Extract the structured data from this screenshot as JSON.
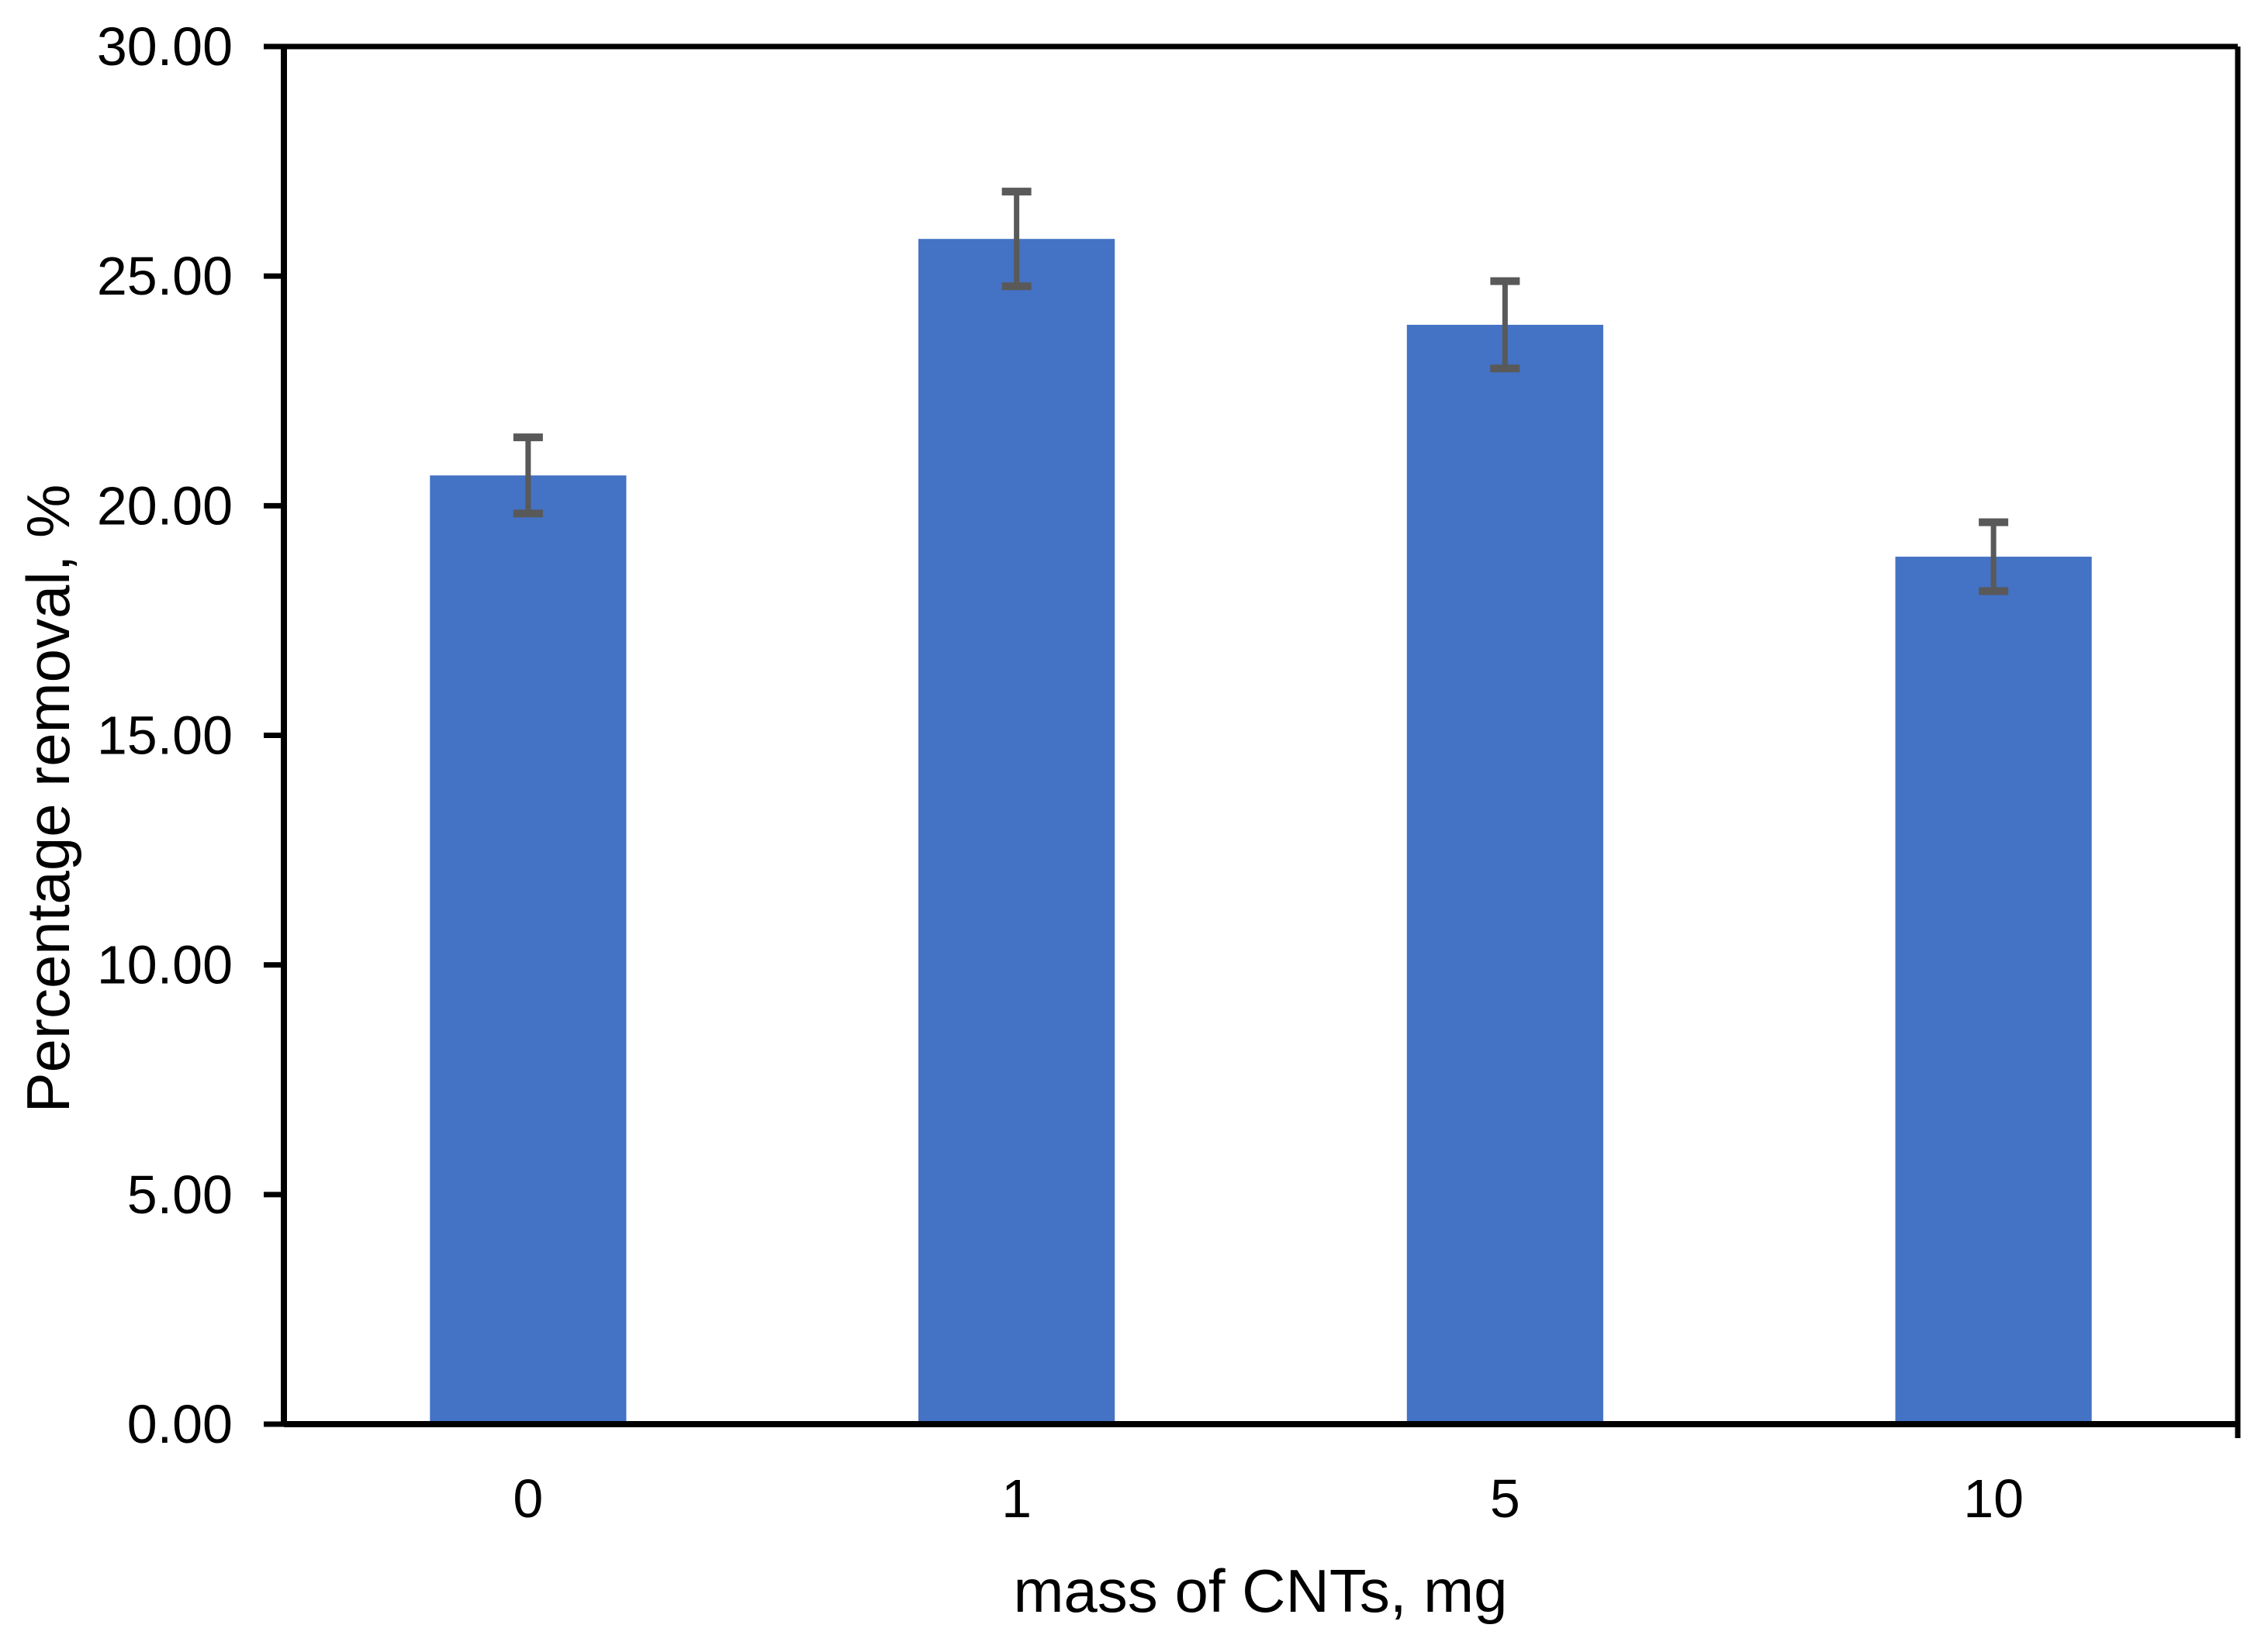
{
  "chart_data": {
    "type": "bar",
    "title": "",
    "categories": [
      "0",
      "1",
      "5",
      "10"
    ],
    "values": [
      20.66,
      25.81,
      23.94,
      18.89
    ],
    "error_bars": [
      0.83,
      1.03,
      0.95,
      0.75
    ],
    "xlabel": "mass of CNTs, mg",
    "ylabel": "Percentage removal, %",
    "ylim": [
      0,
      30
    ],
    "y_ticks": {
      "values": [
        0,
        5,
        10,
        15,
        20,
        25,
        30
      ],
      "labels": [
        "0.00",
        "5.00",
        "10.00",
        "15.00",
        "20.00",
        "25.00",
        "30.00"
      ]
    },
    "grid": false,
    "legend_position": "none",
    "colors": {
      "bar": "#4472C4",
      "error_bar": "#595959",
      "axis": "#000000",
      "text": "#000000",
      "background": "#FFFFFF"
    }
  }
}
